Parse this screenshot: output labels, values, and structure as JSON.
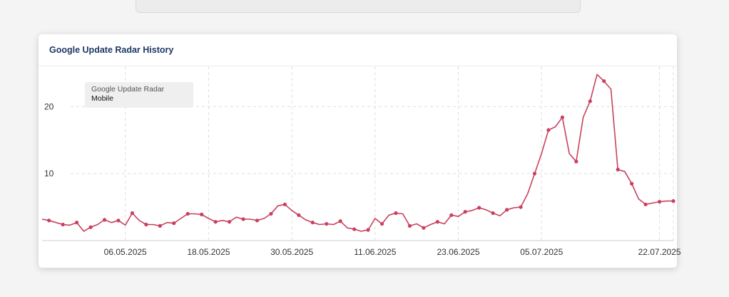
{
  "colors": {
    "series": "#c8415e",
    "title": "#1f3a64",
    "grid": "#dddddd"
  },
  "card": {
    "title": "Google Update Radar History"
  },
  "legend": {
    "title": "Google Update Radar",
    "subtitle": "Mobile"
  },
  "chart_data": {
    "type": "line",
    "title": "Google Update Radar History",
    "xlabel": "",
    "ylabel": "",
    "ylim": [
      0,
      26
    ],
    "yticks": [
      10,
      20
    ],
    "grid": true,
    "legend_position": "top-left",
    "xlim": [
      "2025-04-24",
      "2025-07-24"
    ],
    "xticks": [
      "06.05.2025",
      "18.05.2025",
      "30.05.2025",
      "11.06.2025",
      "23.06.2025",
      "05.07.2025",
      "22.07.2025"
    ],
    "xtick_dates": [
      "2025-05-06",
      "2025-05-18",
      "2025-05-30",
      "2025-06-11",
      "2025-06-23",
      "2025-07-05",
      "2025-07-22"
    ],
    "series": [
      {
        "name": "Google Update Radar Mobile",
        "x": [
          "2025-04-24",
          "2025-04-25",
          "2025-04-26",
          "2025-04-27",
          "2025-04-28",
          "2025-04-29",
          "2025-04-30",
          "2025-05-01",
          "2025-05-02",
          "2025-05-03",
          "2025-05-04",
          "2025-05-05",
          "2025-05-06",
          "2025-05-07",
          "2025-05-08",
          "2025-05-09",
          "2025-05-10",
          "2025-05-11",
          "2025-05-12",
          "2025-05-13",
          "2025-05-14",
          "2025-05-15",
          "2025-05-16",
          "2025-05-17",
          "2025-05-18",
          "2025-05-19",
          "2025-05-20",
          "2025-05-21",
          "2025-05-22",
          "2025-05-23",
          "2025-05-24",
          "2025-05-25",
          "2025-05-26",
          "2025-05-27",
          "2025-05-28",
          "2025-05-29",
          "2025-05-30",
          "2025-05-31",
          "2025-06-01",
          "2025-06-02",
          "2025-06-03",
          "2025-06-04",
          "2025-06-05",
          "2025-06-06",
          "2025-06-07",
          "2025-06-08",
          "2025-06-09",
          "2025-06-10",
          "2025-06-11",
          "2025-06-12",
          "2025-06-13",
          "2025-06-14",
          "2025-06-15",
          "2025-06-16",
          "2025-06-17",
          "2025-06-18",
          "2025-06-19",
          "2025-06-20",
          "2025-06-21",
          "2025-06-22",
          "2025-06-23",
          "2025-06-24",
          "2025-06-25",
          "2025-06-26",
          "2025-06-27",
          "2025-06-28",
          "2025-06-29",
          "2025-06-30",
          "2025-07-01",
          "2025-07-02",
          "2025-07-03",
          "2025-07-04",
          "2025-07-05",
          "2025-07-06",
          "2025-07-07",
          "2025-07-08",
          "2025-07-09",
          "2025-07-10",
          "2025-07-11",
          "2025-07-12",
          "2025-07-13",
          "2025-07-14",
          "2025-07-15",
          "2025-07-16",
          "2025-07-17",
          "2025-07-18",
          "2025-07-19",
          "2025-07-20",
          "2025-07-21",
          "2025-07-22",
          "2025-07-23",
          "2025-07-24"
        ],
        "y": [
          3.2,
          3.0,
          2.7,
          2.4,
          2.3,
          2.7,
          1.4,
          2.0,
          2.4,
          3.1,
          2.7,
          3.0,
          2.3,
          4.1,
          3.0,
          2.4,
          2.4,
          2.2,
          2.7,
          2.6,
          3.3,
          4.0,
          4.0,
          3.9,
          3.3,
          2.8,
          3.0,
          2.8,
          3.5,
          3.2,
          3.2,
          3.0,
          3.3,
          4.0,
          5.2,
          5.4,
          4.5,
          3.8,
          3.1,
          2.7,
          2.4,
          2.5,
          2.4,
          2.9,
          1.9,
          1.7,
          1.4,
          1.6,
          3.3,
          2.5,
          3.8,
          4.1,
          4.0,
          2.2,
          2.5,
          1.9,
          2.4,
          2.8,
          2.5,
          3.8,
          3.6,
          4.3,
          4.5,
          4.9,
          4.6,
          4.1,
          3.7,
          4.6,
          4.9,
          5.0,
          7.0,
          10.0,
          13.0,
          16.5,
          17.0,
          18.4,
          13.0,
          11.8,
          18.4,
          20.8,
          24.8,
          23.8,
          22.6,
          10.6,
          10.3,
          8.5,
          6.2,
          5.4,
          5.6,
          5.8,
          5.9,
          5.9
        ]
      }
    ]
  }
}
